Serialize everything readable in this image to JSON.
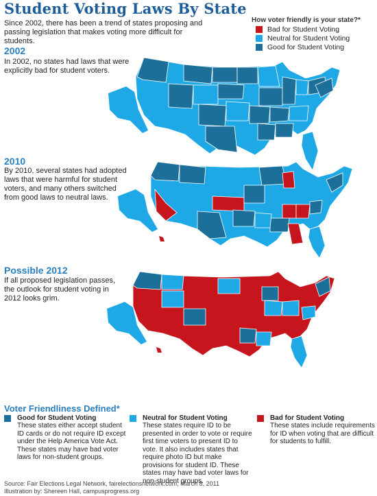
{
  "header": {
    "title": "Student Voting Laws By State",
    "intro": "Since 2002, there has been a trend of states proposing and passing legislation that makes voting more difficult for students."
  },
  "legend": {
    "title": "How voter friendly is your state?*",
    "items": [
      {
        "label": "Bad for Student Voting",
        "color": "#c6151c"
      },
      {
        "label": "Neutral for Student Voting",
        "color": "#1ea8e6"
      },
      {
        "label": "Good for Student Voting",
        "color": "#1b6f99"
      }
    ]
  },
  "colors": {
    "bad": "#c6151c",
    "neutral": "#1ea8e6",
    "good": "#1b6f99",
    "accent": "#2a7fc0"
  },
  "sections": [
    {
      "year": "2002",
      "text": "In 2002, no states had laws that were explicitly bad for student voters."
    },
    {
      "year": "2010",
      "text": "By 2010, several states had adopted laws that were harmful for student voters, and many others switched from good laws to neutral laws."
    },
    {
      "year": "Possible 2012",
      "text": "If all proposed legislation passes, the outlook for student voting in 2012 looks grim."
    }
  ],
  "definitions": {
    "title": "Voter Friendliness Defined*",
    "items": [
      {
        "heading": "Good for Student Voting",
        "text": "These states either accept student ID cards or do not require ID except under the Help America Vote Act. These states may have bad voter laws for non-student groups.",
        "color": "#1b6f99"
      },
      {
        "heading": "Neutral for Student Voting",
        "text": "These states require ID to be presented in order to vote or require first time voters to present ID to vote. It also includes states that require photo ID but make provisions for student ID. These states may have bad voter laws for non-student groups.",
        "color": "#1ea8e6"
      },
      {
        "heading": "Bad for Student Voting",
        "text": "These states include requirements for ID when voting that are difficult for students to fulfill.",
        "color": "#c6151c"
      }
    ]
  },
  "footer": {
    "source": "Source: Fair Elections Legal Network, fairelectionsnetwork.com, March 8, 2011",
    "credit": "Illustration by: Shereen Hall, campusprogress.org"
  }
}
